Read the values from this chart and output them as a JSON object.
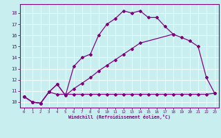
{
  "xlabel": "Windchill (Refroidissement éolien,°C)",
  "bg_color": "#c8eef0",
  "line_color": "#800080",
  "grid_color": "#ffffff",
  "xlim": [
    -0.5,
    23.5
  ],
  "ylim": [
    9.5,
    18.8
  ],
  "xticks": [
    0,
    1,
    2,
    3,
    4,
    5,
    6,
    7,
    8,
    9,
    10,
    11,
    12,
    13,
    14,
    15,
    16,
    17,
    18,
    19,
    20,
    21,
    22,
    23
  ],
  "yticks": [
    10,
    11,
    12,
    13,
    14,
    15,
    16,
    17,
    18
  ],
  "line1_x": [
    0,
    1,
    2,
    3,
    4,
    5,
    6,
    7,
    8,
    9,
    10,
    11,
    12,
    13,
    14,
    15,
    16,
    17,
    18
  ],
  "line1_y": [
    10.5,
    10.0,
    9.9,
    10.9,
    11.6,
    10.6,
    13.2,
    14.0,
    14.3,
    16.0,
    17.0,
    17.5,
    18.2,
    18.0,
    18.2,
    17.6,
    17.6,
    16.8,
    16.1
  ],
  "line2_x": [
    0,
    1,
    2,
    3,
    4,
    5,
    6,
    7,
    8,
    9,
    10,
    11,
    12,
    13,
    14,
    15,
    16,
    17,
    18,
    19,
    20,
    21,
    22,
    23
  ],
  "line2_y": [
    10.5,
    10.0,
    9.9,
    10.9,
    10.7,
    10.7,
    10.7,
    10.7,
    10.7,
    10.7,
    10.7,
    10.7,
    10.7,
    10.7,
    10.7,
    10.7,
    10.7,
    10.7,
    10.7,
    10.7,
    10.7,
    10.7,
    10.7,
    10.8
  ],
  "line3_x": [
    0,
    1,
    2,
    3,
    4,
    5,
    6,
    7,
    8,
    9,
    10,
    11,
    12,
    13,
    14,
    18,
    19,
    20,
    21,
    22,
    23
  ],
  "line3_y": [
    10.5,
    10.0,
    9.9,
    10.9,
    11.6,
    10.6,
    11.2,
    11.7,
    12.2,
    12.8,
    13.3,
    13.8,
    14.3,
    14.8,
    15.3,
    16.1,
    15.8,
    15.5,
    15.0,
    12.2,
    10.8
  ]
}
